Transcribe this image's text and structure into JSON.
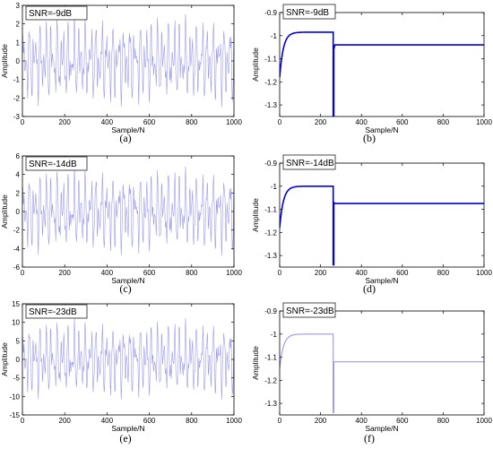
{
  "chart_data": [
    {
      "id": "a",
      "type": "line",
      "variant": "noisy",
      "caption": "(a)",
      "snr_label": "SNR=-9dB",
      "xlabel": "Sample/N",
      "ylabel": "Amplitude",
      "xlim": [
        0,
        1000
      ],
      "ylim": [
        -3,
        3
      ],
      "xticks": [
        0,
        200,
        400,
        600,
        800,
        1000
      ],
      "yticks": [
        -3,
        -2,
        -1,
        0,
        1,
        2,
        3
      ],
      "ytick_labels": [
        "-3",
        "-2",
        "-1",
        "0",
        "1",
        "2",
        "3"
      ],
      "series": [
        {
          "amplitude": 2.4,
          "line_color": "#9a9aee",
          "line_width": 0.6
        }
      ]
    },
    {
      "id": "b",
      "type": "line",
      "variant": "estimate",
      "caption": "(b)",
      "snr_label": "SNR=-9dB",
      "xlabel": "Sample/N",
      "ylabel": "Amplitude",
      "xlim": [
        0,
        1000
      ],
      "ylim": [
        -1.35,
        -0.9
      ],
      "xticks": [
        0,
        200,
        400,
        600,
        800,
        1000
      ],
      "yticks": [
        -1.3,
        -1.2,
        -1.1,
        -1,
        -0.9
      ],
      "ytick_labels": [
        "-1.3",
        "-1.2",
        "-1.1",
        "-1",
        "-0.9"
      ],
      "series": [
        {
          "line_color": "#0000dd",
          "line_width": 1.6,
          "start": -1.18,
          "plateau": -0.985,
          "drop_at": 262,
          "drop_to": -1.36,
          "recover_to": -1.06,
          "final": -1.04
        }
      ]
    },
    {
      "id": "c",
      "type": "line",
      "variant": "noisy",
      "caption": "(c)",
      "snr_label": "SNR=-14dB",
      "xlabel": "Sample/N",
      "ylabel": "Amplitude",
      "xlim": [
        0,
        1000
      ],
      "ylim": [
        -6,
        6
      ],
      "xticks": [
        0,
        200,
        400,
        600,
        800,
        1000
      ],
      "yticks": [
        -6,
        -4,
        -2,
        0,
        2,
        4,
        6
      ],
      "ytick_labels": [
        "-6",
        "-4",
        "-2",
        "0",
        "2",
        "4",
        "6"
      ],
      "series": [
        {
          "amplitude": 4.6,
          "line_color": "#9a9aee",
          "line_width": 0.6
        }
      ]
    },
    {
      "id": "d",
      "type": "line",
      "variant": "estimate",
      "caption": "(d)",
      "snr_label": "SNR=-14dB",
      "xlabel": "Sample/N",
      "ylabel": "Amplitude",
      "xlim": [
        0,
        1000
      ],
      "ylim": [
        -1.35,
        -0.9
      ],
      "xticks": [
        0,
        200,
        400,
        600,
        800,
        1000
      ],
      "yticks": [
        -1.3,
        -1.2,
        -1.1,
        -1,
        -0.9
      ],
      "ytick_labels": [
        "-1.3",
        "-1.2",
        "-1.1",
        "-1",
        "-0.9"
      ],
      "series": [
        {
          "line_color": "#0000dd",
          "line_width": 1.6,
          "start": -1.18,
          "plateau": -1.0,
          "drop_at": 262,
          "drop_to": -1.34,
          "recover_to": -1.07,
          "final": -1.075
        }
      ]
    },
    {
      "id": "e",
      "type": "line",
      "variant": "noisy",
      "caption": "(e)",
      "snr_label": "SNR=-23dB",
      "xlabel": "Sample/N",
      "ylabel": "Amplitude",
      "xlim": [
        0,
        1000
      ],
      "ylim": [
        -15,
        15
      ],
      "xticks": [
        0,
        200,
        400,
        600,
        800,
        1000
      ],
      "yticks": [
        -15,
        -10,
        -5,
        0,
        5,
        10,
        15
      ],
      "ytick_labels": [
        "-15",
        "-10",
        "-5",
        "0",
        "5",
        "10",
        "15"
      ],
      "series": [
        {
          "amplitude": 10.5,
          "line_color": "#9a9aee",
          "line_width": 0.6
        }
      ]
    },
    {
      "id": "f",
      "type": "line",
      "variant": "estimate",
      "caption": "(f)",
      "snr_label": "SNR=-23dB",
      "xlabel": "Sample/N",
      "ylabel": "Amplitude",
      "xlim": [
        0,
        1000
      ],
      "ylim": [
        -1.35,
        -0.9
      ],
      "xticks": [
        0,
        200,
        400,
        600,
        800,
        1000
      ],
      "yticks": [
        -1.3,
        -1.2,
        -1.1,
        -1,
        -0.9
      ],
      "ytick_labels": [
        "-1.3",
        "-1.2",
        "-1.1",
        "-1",
        "-0.9"
      ],
      "series": [
        {
          "line_color": "#8c8cf0",
          "line_width": 1.0,
          "start": -1.15,
          "plateau": -1.0,
          "drop_at": 262,
          "drop_to": -1.34,
          "recover_to": -1.12,
          "final": -1.12
        }
      ]
    }
  ]
}
